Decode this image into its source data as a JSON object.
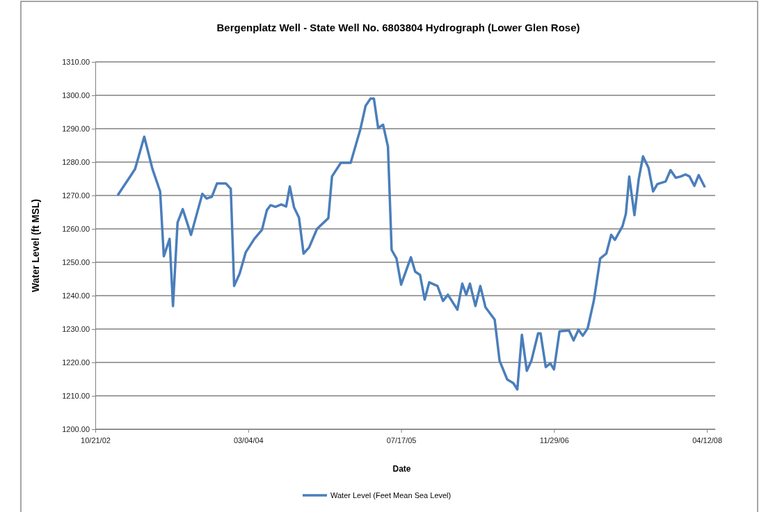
{
  "chart_data": {
    "type": "line",
    "title": "Bergenplatz Well - State Well No. 6803804 Hydrograph (Lower Glen Rose)",
    "xlabel": "Date",
    "ylabel": "Water Level (ft MSL)",
    "xlim": [
      "2002-10-21",
      "2008-05-09"
    ],
    "xticks": [
      {
        "value": "2002-10-21",
        "label": "10/21/02"
      },
      {
        "value": "2004-03-04",
        "label": "03/04/04"
      },
      {
        "value": "2005-07-17",
        "label": "07/17/05"
      },
      {
        "value": "2006-11-29",
        "label": "11/29/06"
      },
      {
        "value": "2008-04-12",
        "label": "04/12/08"
      }
    ],
    "ylim": [
      1200,
      1310
    ],
    "yticks": [
      {
        "value": 1200,
        "label": "1200.00"
      },
      {
        "value": 1210,
        "label": "1210.00"
      },
      {
        "value": 1220,
        "label": "1220.00"
      },
      {
        "value": 1230,
        "label": "1230.00"
      },
      {
        "value": 1240,
        "label": "1240.00"
      },
      {
        "value": 1250,
        "label": "1250.00"
      },
      {
        "value": 1260,
        "label": "1260.00"
      },
      {
        "value": 1270,
        "label": "1270.00"
      },
      {
        "value": 1280,
        "label": "1280.00"
      },
      {
        "value": 1290,
        "label": "1290.00"
      },
      {
        "value": 1300,
        "label": "1300.00"
      },
      {
        "value": 1310,
        "label": "1310.00"
      }
    ],
    "grid": "y",
    "legend": "bottom",
    "marker": "none",
    "line_style": "solid",
    "series": [
      {
        "name": "Water Level (Feet Mean Sea Level)",
        "color": "#4a7ebb",
        "x": [
          "2003-01-04",
          "2003-02-28",
          "2003-03-30",
          "2003-04-26",
          "2003-05-21",
          "2003-06-02",
          "2003-06-21",
          "2003-07-02",
          "2003-07-17",
          "2003-08-03",
          "2003-08-30",
          "2003-10-06",
          "2003-10-20",
          "2003-11-06",
          "2003-11-23",
          "2003-12-22",
          "2004-01-07",
          "2004-01-18",
          "2004-02-05",
          "2004-02-25",
          "2004-03-24",
          "2004-04-18",
          "2004-05-04",
          "2004-05-16",
          "2004-06-01",
          "2004-06-20",
          "2004-07-06",
          "2004-07-18",
          "2004-08-01",
          "2004-08-17",
          "2004-09-01",
          "2004-09-19",
          "2004-10-15",
          "2004-11-21",
          "2004-12-03",
          "2005-01-01",
          "2005-02-02",
          "2005-03-06",
          "2005-03-23",
          "2005-04-08",
          "2005-04-19",
          "2005-05-03",
          "2005-05-19",
          "2005-06-04",
          "2005-06-16",
          "2005-07-02",
          "2005-07-17",
          "2005-08-18",
          "2005-09-01",
          "2005-09-17",
          "2005-10-02",
          "2005-10-17",
          "2005-11-13",
          "2005-12-01",
          "2005-12-17",
          "2006-01-17",
          "2006-02-02",
          "2006-02-15",
          "2006-02-27",
          "2006-03-17",
          "2006-04-02",
          "2006-04-19",
          "2006-05-19",
          "2006-06-04",
          "2006-06-29",
          "2006-07-19",
          "2006-08-01",
          "2006-08-16",
          "2006-09-01",
          "2006-09-16",
          "2006-10-08",
          "2006-10-16",
          "2006-11-02",
          "2006-11-17",
          "2006-11-29",
          "2006-12-17",
          "2007-01-17",
          "2007-02-01",
          "2007-02-17",
          "2007-03-03",
          "2007-03-19",
          "2007-04-08",
          "2007-04-29",
          "2007-05-19",
          "2007-06-04",
          "2007-06-16",
          "2007-07-11",
          "2007-07-22",
          "2007-08-02",
          "2007-08-19",
          "2007-09-02",
          "2007-09-16",
          "2007-10-04",
          "2007-10-19",
          "2007-11-02",
          "2007-11-29",
          "2007-12-15",
          "2008-01-01",
          "2008-01-18",
          "2008-02-02",
          "2008-02-15",
          "2008-03-02",
          "2008-03-16",
          "2008-04-04"
        ],
        "values": [
          1270.3,
          1277.9,
          1287.6,
          1277.9,
          1271.2,
          1251.8,
          1257,
          1236.9,
          1261.9,
          1265.9,
          1258.2,
          1270.5,
          1269.1,
          1269.6,
          1273.6,
          1273.6,
          1272,
          1242.9,
          1246.6,
          1253,
          1257,
          1259.7,
          1265.6,
          1267.1,
          1266.6,
          1267.3,
          1266.7,
          1272.7,
          1266.4,
          1263.4,
          1252.6,
          1254.4,
          1260,
          1263.2,
          1275.7,
          1279.8,
          1279.8,
          1289.9,
          1296.9,
          1299,
          1299,
          1290.2,
          1291.2,
          1284.6,
          1253.7,
          1251.1,
          1243.3,
          1251.5,
          1247.2,
          1246.2,
          1238.8,
          1244,
          1242.9,
          1238.4,
          1240.3,
          1235.8,
          1243.6,
          1240.3,
          1243.6,
          1236.9,
          1242.9,
          1236.5,
          1232.8,
          1220.5,
          1214.9,
          1213.8,
          1211.9,
          1228.3,
          1217.5,
          1220.5,
          1228.7,
          1228.7,
          1218.6,
          1219.7,
          1217.9,
          1229.3,
          1229.6,
          1226.6,
          1229.8,
          1228,
          1230.2,
          1238.4,
          1251.1,
          1252.6,
          1258.2,
          1256.7,
          1260.8,
          1264.5,
          1275.7,
          1264.1,
          1274.9,
          1281.7,
          1278.3,
          1271.2,
          1273.4,
          1274.2,
          1277.6,
          1275.3,
          1275.7,
          1276.3,
          1275.7,
          1272.9,
          1276.1,
          1272.7
        ]
      }
    ]
  }
}
